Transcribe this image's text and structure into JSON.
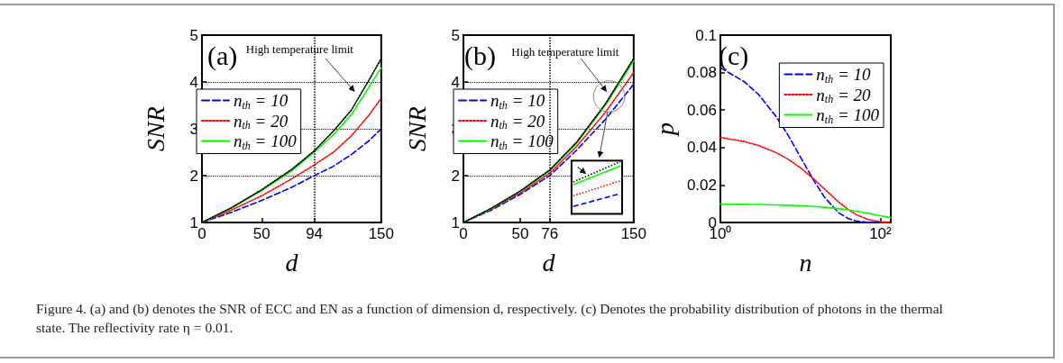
{
  "chart_data": [
    {
      "type": "line",
      "title": "(a)",
      "xlabel": "d",
      "ylabel": "SNR",
      "xlim": [
        0,
        150
      ],
      "ylim": [
        1,
        5
      ],
      "xticks": [
        0,
        50,
        94,
        150
      ],
      "yticks": [
        1,
        2,
        3,
        4,
        5
      ],
      "grid": "y",
      "legend": "top left",
      "marker": "none",
      "x": [
        0,
        25,
        50,
        75,
        94,
        110,
        125,
        140,
        150
      ],
      "ref_lines": [
        {
          "axis": "x",
          "value": 94
        }
      ],
      "annotations": [
        "High temperature limit"
      ],
      "series": [
        {
          "name": "n$_{th}$ = 10",
          "color": "#0000ff",
          "line_style": "dashed",
          "values": [
            1,
            1.22,
            1.47,
            1.75,
            2.0,
            2.2,
            2.45,
            2.75,
            3.0
          ]
        },
        {
          "name": "n$_{th}$ = 20",
          "color": "#ff0000",
          "line_style": "dotted",
          "values": [
            1,
            1.27,
            1.57,
            1.93,
            2.23,
            2.5,
            2.85,
            3.3,
            3.65
          ]
        },
        {
          "name": "n$_{th}$ = 100",
          "color": "#00ff00",
          "line_style": "solid",
          "values": [
            1,
            1.31,
            1.68,
            2.1,
            2.5,
            2.87,
            3.3,
            3.9,
            4.3
          ]
        },
        {
          "color": "#000000",
          "line_style": "dotted",
          "values": [
            1,
            1.32,
            1.7,
            2.13,
            2.53,
            2.95,
            3.4,
            4.05,
            4.5
          ]
        }
      ]
    },
    {
      "type": "line",
      "title": "(b)",
      "xlabel": "d",
      "ylabel": "SNR",
      "xlim": [
        0,
        150
      ],
      "ylim": [
        1,
        5
      ],
      "xticks": [
        0,
        50,
        76,
        150
      ],
      "yticks": [
        1,
        2,
        3,
        4,
        5
      ],
      "grid": "y",
      "legend": "top left",
      "marker": "none",
      "x": [
        0,
        25,
        50,
        76,
        100,
        125,
        150
      ],
      "ref_lines": [
        {
          "axis": "x",
          "value": 76
        }
      ],
      "annotations": [
        "High temperature limit"
      ],
      "series": [
        {
          "name": "n$_{th}$ = 10",
          "color": "#0000ff",
          "line_style": "dashed",
          "values": [
            1,
            1.27,
            1.6,
            2.0,
            2.55,
            3.2,
            3.95
          ]
        },
        {
          "name": "n$_{th}$ = 20",
          "color": "#ff0000",
          "line_style": "dotted",
          "values": [
            1,
            1.29,
            1.63,
            2.05,
            2.63,
            3.35,
            4.2
          ]
        },
        {
          "name": "n$_{th}$ = 100",
          "color": "#00ff00",
          "line_style": "solid",
          "values": [
            1,
            1.3,
            1.66,
            2.1,
            2.7,
            3.5,
            4.45
          ]
        },
        {
          "color": "#000000",
          "line_style": "dotted",
          "values": [
            1,
            1.31,
            1.67,
            2.12,
            2.72,
            3.53,
            4.5
          ]
        }
      ]
    },
    {
      "type": "line",
      "title": "(c)",
      "xlabel": "n",
      "ylabel": "p",
      "log": "x",
      "xlim": [
        1,
        135
      ],
      "ylim": [
        0,
        0.1
      ],
      "xticks": [
        {
          "value": 1,
          "label": "10⁰"
        },
        {
          "value": 100,
          "label": "10²"
        }
      ],
      "yticks": [
        0,
        0.02,
        0.04,
        0.06,
        0.08,
        0.1
      ],
      "legend": "top right",
      "marker": "none",
      "x": [
        1,
        2,
        3,
        5,
        7,
        10,
        15,
        20,
        30,
        40,
        50,
        70,
        100,
        135
      ],
      "annotations": [
        "Figure 4. (a) and (b) denotes the SNR of ECC and EN as a function of dimension d, respectively. (c) Denotes the probability distribution of photons in the thermal state. The reflectivity rate η = 0.01."
      ],
      "series": [
        {
          "name": "n$_{th}$ = 10",
          "color": "#0000ff",
          "line_style": "dashed",
          "values": [
            0.0826,
            0.0751,
            0.0683,
            0.0564,
            0.0467,
            0.035,
            0.0218,
            0.0135,
            0.0052,
            0.002,
            0.0008,
            0.0001,
            0,
            0
          ]
        },
        {
          "name": "n$_{th}$ = 20",
          "color": "#ff0000",
          "line_style": "dotted",
          "values": [
            0.0454,
            0.0432,
            0.0411,
            0.0373,
            0.0338,
            0.0292,
            0.0229,
            0.0179,
            0.011,
            0.0068,
            0.0042,
            0.0016,
            0.0004,
            0.0001
          ]
        },
        {
          "name": "n$_{th}$ = 100",
          "color": "#00ff00",
          "line_style": "solid",
          "values": [
            0.0098,
            0.0097,
            0.0096,
            0.0094,
            0.0092,
            0.009,
            0.0085,
            0.0081,
            0.0074,
            0.0067,
            0.006,
            0.0049,
            0.0036,
            0.0026
          ]
        }
      ]
    }
  ]
}
